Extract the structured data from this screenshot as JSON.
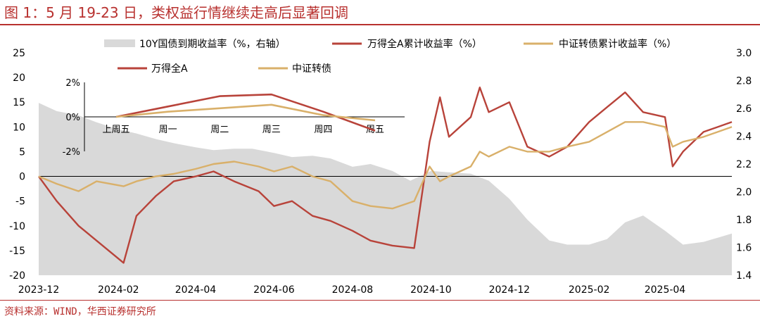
{
  "header": {
    "title": "图 1：5 月 19-23 日，类权益行情继续走高后显著回调"
  },
  "footer": {
    "source": "资料来源：WIND，华西证券研究所"
  },
  "colors": {
    "accent": "#B8312F",
    "wind_all_a": "#B8433A",
    "convertible": "#D9B06A",
    "yield_area": "#D9D9D9"
  },
  "chart_data": [
    {
      "type": "line",
      "subtype": "combo-area-line",
      "x_tick_labels": [
        "2023-12",
        "2024-02",
        "2024-04",
        "2024-06",
        "2024-08",
        "2024-10",
        "2024-12",
        "2025-02",
        "2025-04"
      ],
      "y_left": {
        "ticks": [
          25,
          20,
          15,
          10,
          5,
          0,
          -5,
          -10,
          -15,
          -20
        ],
        "range": [
          -20,
          25
        ]
      },
      "y_right": {
        "ticks": [
          "3.0",
          "2.8",
          "2.6",
          "2.4",
          "2.2",
          "2.0",
          "1.8",
          "1.6",
          "1.4"
        ],
        "range": [
          1.4,
          3.0
        ]
      },
      "legend": [
        {
          "name": "10Y国债到期收益率（%，右轴）",
          "style": "area",
          "color": "#D9D9D9"
        },
        {
          "name": "万得全A累计收益率（%）",
          "style": "line",
          "color": "#B8433A"
        },
        {
          "name": "中证转债累计收益率（%）",
          "style": "line",
          "color": "#D9B06A"
        }
      ],
      "series": [
        {
          "name": "10Y国债到期收益率（%，右轴）",
          "axis": "right",
          "x": [
            "2023-12-01",
            "2023-12-15",
            "2024-01-01",
            "2024-01-15",
            "2024-02-01",
            "2024-02-15",
            "2024-03-01",
            "2024-03-15",
            "2024-04-01",
            "2024-04-15",
            "2024-05-01",
            "2024-05-15",
            "2024-06-01",
            "2024-06-15",
            "2024-07-01",
            "2024-07-15",
            "2024-08-01",
            "2024-08-15",
            "2024-09-01",
            "2024-09-15",
            "2024-10-01",
            "2024-10-15",
            "2024-11-01",
            "2024-11-15",
            "2024-12-01",
            "2024-12-15",
            "2025-01-01",
            "2025-01-15",
            "2025-02-01",
            "2025-02-15",
            "2025-03-01",
            "2025-03-15",
            "2025-04-01",
            "2025-04-15",
            "2025-05-01",
            "2025-05-23"
          ],
          "values": [
            2.64,
            2.58,
            2.55,
            2.5,
            2.45,
            2.42,
            2.38,
            2.35,
            2.32,
            2.3,
            2.31,
            2.31,
            2.28,
            2.25,
            2.26,
            2.24,
            2.18,
            2.2,
            2.15,
            2.08,
            2.15,
            2.14,
            2.13,
            2.08,
            1.95,
            1.8,
            1.65,
            1.62,
            1.62,
            1.66,
            1.78,
            1.83,
            1.72,
            1.62,
            1.64,
            1.7
          ]
        },
        {
          "name": "万得全A累计收益率（%）",
          "axis": "left",
          "x": [
            "2023-12-01",
            "2023-12-15",
            "2024-01-01",
            "2024-01-15",
            "2024-02-05",
            "2024-02-15",
            "2024-03-01",
            "2024-03-15",
            "2024-04-01",
            "2024-04-15",
            "2024-05-01",
            "2024-05-20",
            "2024-06-01",
            "2024-06-15",
            "2024-07-01",
            "2024-07-15",
            "2024-08-01",
            "2024-08-15",
            "2024-09-01",
            "2024-09-18",
            "2024-09-30",
            "2024-10-08",
            "2024-10-15",
            "2024-11-01",
            "2024-11-08",
            "2024-11-15",
            "2024-12-01",
            "2024-12-15",
            "2025-01-01",
            "2025-01-15",
            "2025-02-01",
            "2025-02-15",
            "2025-03-01",
            "2025-03-15",
            "2025-04-01",
            "2025-04-07",
            "2025-04-15",
            "2025-05-01",
            "2025-05-23"
          ],
          "values": [
            0,
            -5,
            -10,
            -13,
            -17.5,
            -8,
            -4,
            -1,
            0,
            1,
            -1,
            -3,
            -6,
            -5,
            -8,
            -9,
            -11,
            -13,
            -14,
            -14.5,
            7,
            16,
            8,
            12,
            18,
            13,
            15,
            6,
            4,
            6,
            11,
            14,
            17,
            13,
            12,
            2,
            5,
            9,
            11
          ]
        },
        {
          "name": "中证转债累计收益率（%）",
          "axis": "left",
          "x": [
            "2023-12-01",
            "2023-12-15",
            "2024-01-01",
            "2024-01-15",
            "2024-02-05",
            "2024-02-15",
            "2024-03-01",
            "2024-03-15",
            "2024-04-01",
            "2024-04-15",
            "2024-05-01",
            "2024-05-20",
            "2024-06-01",
            "2024-06-15",
            "2024-07-01",
            "2024-07-15",
            "2024-08-01",
            "2024-08-15",
            "2024-09-01",
            "2024-09-18",
            "2024-09-30",
            "2024-10-08",
            "2024-10-15",
            "2024-11-01",
            "2024-11-08",
            "2024-11-15",
            "2024-12-01",
            "2024-12-15",
            "2025-01-01",
            "2025-01-15",
            "2025-02-01",
            "2025-02-15",
            "2025-03-01",
            "2025-03-15",
            "2025-04-01",
            "2025-04-07",
            "2025-04-15",
            "2025-05-01",
            "2025-05-23"
          ],
          "values": [
            0,
            -1.5,
            -3,
            -1,
            -2,
            -1,
            0,
            0.5,
            1.5,
            2.5,
            3,
            2,
            1,
            2,
            0,
            -1,
            -5,
            -6,
            -6.5,
            -5,
            2,
            -1,
            0,
            2,
            5,
            4,
            6,
            5,
            5,
            6,
            7,
            9,
            11,
            11,
            10,
            6,
            7,
            8,
            10
          ]
        }
      ]
    },
    {
      "type": "line",
      "subtype": "inset",
      "categories": [
        "上周五",
        "周一",
        "周二",
        "周三",
        "周四",
        "周五"
      ],
      "y_ticks": [
        "2%",
        "0%",
        "-2%"
      ],
      "y_range": [
        -2,
        2
      ],
      "legend": [
        {
          "name": "万得全A",
          "color": "#B8433A"
        },
        {
          "name": "中证转债",
          "color": "#D9B06A"
        }
      ],
      "series": [
        {
          "name": "万得全A",
          "values": [
            0,
            0.6,
            1.2,
            1.3,
            0.3,
            -0.8
          ]
        },
        {
          "name": "中证转债",
          "values": [
            0,
            0.3,
            0.5,
            0.7,
            0.1,
            -0.2
          ]
        }
      ]
    }
  ]
}
